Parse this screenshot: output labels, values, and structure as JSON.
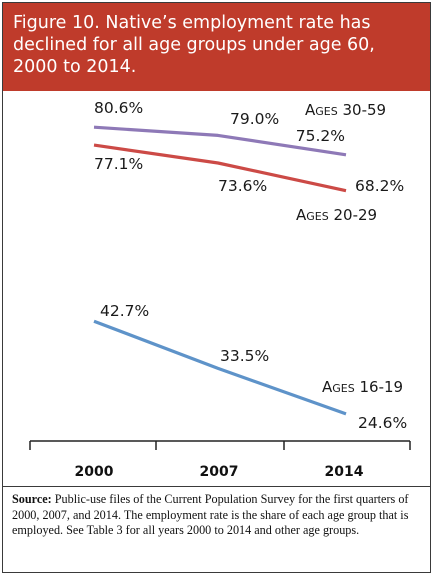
{
  "figure": {
    "title_lines": [
      "Figure 10. Native’s employment rate has",
      "declined for all age groups under age 60,",
      "2000 to 2014."
    ]
  },
  "chart_data": {
    "type": "line",
    "categories": [
      "2000",
      "2007",
      "2014"
    ],
    "series": [
      {
        "name": "Ages 30-59",
        "values": [
          80.6,
          79.0,
          75.2
        ],
        "labels": [
          "80.6%",
          "79.0%",
          "75.2%"
        ],
        "color": "#8e79b7"
      },
      {
        "name": "Ages 20-29",
        "values": [
          77.1,
          73.6,
          68.2
        ],
        "labels": [
          "77.1%",
          "73.6%",
          "68.2%"
        ],
        "color": "#cc4a46"
      },
      {
        "name": "Ages 16-19",
        "values": [
          42.7,
          33.5,
          24.6
        ],
        "labels": [
          "42.7%",
          "33.5%",
          "24.6%"
        ],
        "color": "#5e93c9"
      }
    ],
    "ylim": [
      24,
      82
    ],
    "grid": false
  },
  "source": {
    "label": "Source:",
    "text": " Public-use files of the Current Population Survey for the first quarters of 2000, 2007, and 2014. The employment rate is the share of each age group that is employed. See Table 3 for all years 2000 to 2014 and other age groups."
  }
}
